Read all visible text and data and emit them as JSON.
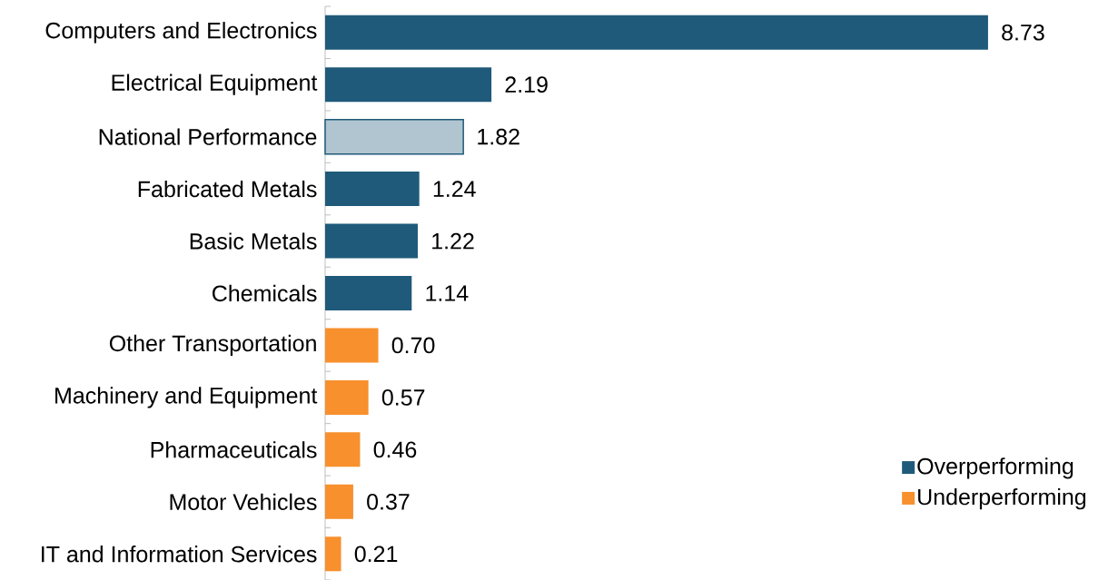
{
  "chart_data": {
    "type": "bar",
    "orientation": "horizontal",
    "legend": "right",
    "categories": [
      "Computers and Electronics",
      "Electrical Equipment",
      "National Performance",
      "Fabricated Metals",
      "Basic Metals",
      "Chemicals",
      "Other Transportation",
      "Machinery and Equipment",
      "Pharmaceuticals",
      "Motor Vehicles",
      "IT and Information Services"
    ],
    "series": [
      {
        "name": "Overperforming",
        "color": "#1f5a7a",
        "values": [
          8.73,
          2.19,
          null,
          1.24,
          1.22,
          1.14,
          null,
          null,
          null,
          null,
          null
        ],
        "value_labels": [
          "8.73",
          "2.19",
          null,
          "1.24",
          "1.22",
          "1.14",
          null,
          null,
          null,
          null,
          null
        ]
      },
      {
        "name": "Underperforming",
        "color": "#f7902d",
        "values": [
          null,
          null,
          null,
          null,
          null,
          null,
          0.7,
          0.57,
          0.46,
          0.37,
          0.21
        ],
        "value_labels": [
          null,
          null,
          null,
          null,
          null,
          null,
          "0.70",
          "0.57",
          "0.46",
          "0.37",
          "0.21"
        ]
      },
      {
        "color": "#1f5a7a",
        "values": [
          null,
          null,
          1.82,
          null,
          null,
          null,
          null,
          null,
          null,
          null,
          null
        ],
        "value_labels": [
          null,
          null,
          "1.82",
          null,
          null,
          null,
          null,
          null,
          null,
          null,
          null
        ]
      }
    ]
  }
}
